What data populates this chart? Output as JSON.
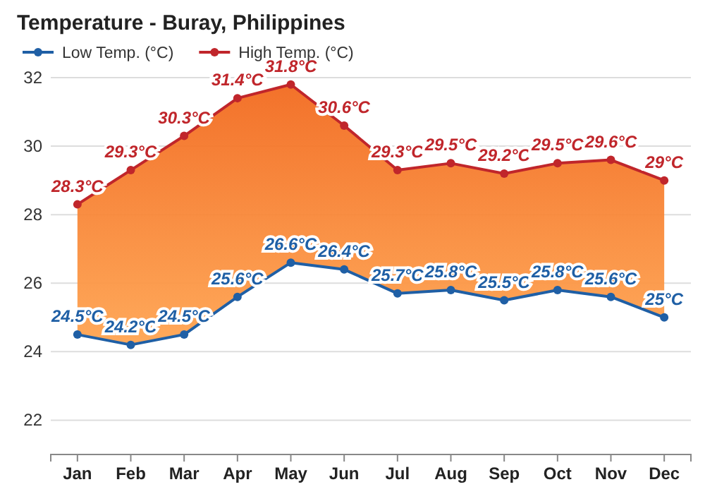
{
  "chart_data": {
    "type": "line",
    "title": "Temperature - Buray, Philippines",
    "categories": [
      "Jan",
      "Feb",
      "Mar",
      "Apr",
      "May",
      "Jun",
      "Jul",
      "Aug",
      "Sep",
      "Oct",
      "Nov",
      "Dec"
    ],
    "series": [
      {
        "name": "Low Temp. (°C)",
        "color": "#1f5fa5",
        "values": [
          24.5,
          24.2,
          24.5,
          25.6,
          26.6,
          26.4,
          25.7,
          25.8,
          25.5,
          25.8,
          25.6,
          25
        ],
        "value_labels": [
          "24.5°C",
          "24.2°C",
          "24.5°C",
          "25.6°C",
          "26.6°C",
          "26.4°C",
          "25.7°C",
          "25.8°C",
          "25.5°C",
          "25.8°C",
          "25.6°C",
          "25°C"
        ]
      },
      {
        "name": "High Temp. (°C)",
        "type": "area",
        "color": "#c0262b",
        "values": [
          28.3,
          29.3,
          30.3,
          31.4,
          31.8,
          30.6,
          29.3,
          29.5,
          29.2,
          29.5,
          29.6,
          29
        ],
        "value_labels": [
          "28.3°C",
          "29.3°C",
          "30.3°C",
          "31.4°C",
          "31.8°C",
          "30.6°C",
          "29.3°C",
          "29.5°C",
          "29.2°C",
          "29.5°C",
          "29.6°C",
          "29°C"
        ]
      }
    ],
    "ylim": [
      21,
      32
    ],
    "yticks": [
      22,
      24,
      26,
      28,
      30,
      32
    ],
    "grid": "y",
    "legend": "top left",
    "marker": "circle",
    "line_style": "solid"
  }
}
